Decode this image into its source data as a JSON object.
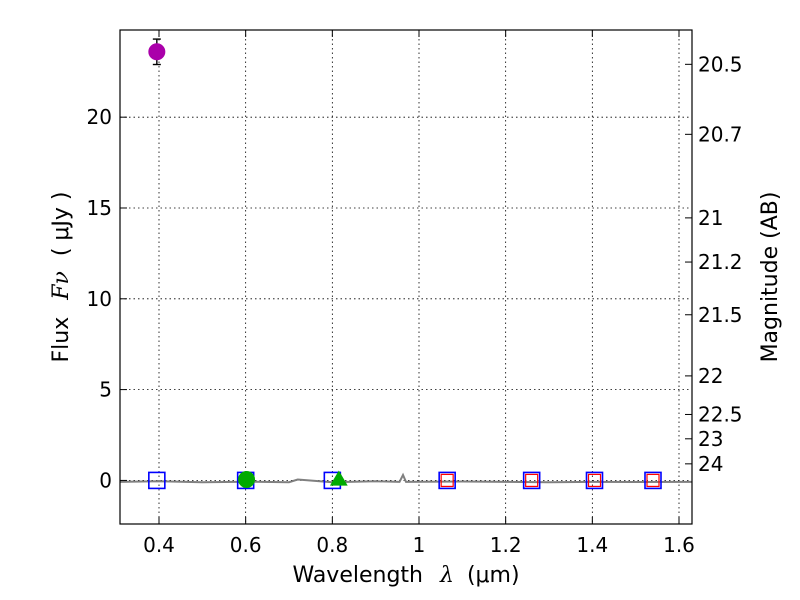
{
  "chart_data": {
    "type": "scatter",
    "title": "",
    "xlabel": "Wavelength",
    "xlabel_symbol": "λ",
    "xlabel_unit": "(μm)",
    "ylabel": "Flux",
    "ylabel_symbol": "Fν",
    "ylabel_unit": "( μJy )",
    "ylabel_right": "Magnitude (AB)",
    "xlim": [
      0.31,
      1.63
    ],
    "ylim": [
      -2.4,
      24.8
    ],
    "grid": true,
    "x_ticks": [
      {
        "value": 0.4,
        "label": "0.4"
      },
      {
        "value": 0.6,
        "label": "0.6"
      },
      {
        "value": 0.8,
        "label": "0.8"
      },
      {
        "value": 1.0,
        "label": "1"
      },
      {
        "value": 1.2,
        "label": "1.2"
      },
      {
        "value": 1.4,
        "label": "1.4"
      },
      {
        "value": 1.6,
        "label": "1.6"
      }
    ],
    "y_ticks": [
      {
        "value": 0,
        "label": "0"
      },
      {
        "value": 5,
        "label": "5"
      },
      {
        "value": 10,
        "label": "10"
      },
      {
        "value": 15,
        "label": "15"
      },
      {
        "value": 20,
        "label": "20"
      }
    ],
    "mag_ticks": [
      {
        "value": 20.5,
        "label": "20.5"
      },
      {
        "value": 20.7,
        "label": "20.7"
      },
      {
        "value": 21,
        "label": "21"
      },
      {
        "value": 21.2,
        "label": "21.2"
      },
      {
        "value": 21.5,
        "label": "21.5"
      },
      {
        "value": 22,
        "label": "22"
      },
      {
        "value": 22.5,
        "label": "22.5"
      },
      {
        "value": 23,
        "label": "23"
      },
      {
        "value": 24,
        "label": "24"
      }
    ],
    "series": [
      {
        "name": "model photometry",
        "marker": "square",
        "color": "#0000ff",
        "points": [
          {
            "x": 0.395,
            "y": 0.0
          },
          {
            "x": 0.6,
            "y": 0.0
          },
          {
            "x": 0.8,
            "y": 0.0
          },
          {
            "x": 1.065,
            "y": 0.0
          },
          {
            "x": 1.26,
            "y": 0.0
          },
          {
            "x": 1.405,
            "y": 0.0
          },
          {
            "x": 1.54,
            "y": 0.0
          }
        ]
      },
      {
        "name": "upper-limit photometry",
        "marker": "square",
        "color": "#ff0000",
        "points": [
          {
            "x": 1.065,
            "y": 0.0
          },
          {
            "x": 1.26,
            "y": 0.0
          },
          {
            "x": 1.405,
            "y": 0.0
          },
          {
            "x": 1.54,
            "y": 0.0
          }
        ]
      },
      {
        "name": "green circle detection",
        "marker": "circle",
        "color": "#00aa00",
        "points": [
          {
            "x": 0.602,
            "y": 0.05,
            "err": 0.3
          }
        ]
      },
      {
        "name": "green triangle detection",
        "marker": "triangle",
        "color": "#00aa00",
        "points": [
          {
            "x": 0.815,
            "y": 0.05
          }
        ]
      },
      {
        "name": "magenta circle detection",
        "marker": "circle",
        "color": "#aa00aa",
        "points": [
          {
            "x": 0.395,
            "y": 23.6,
            "err": 0.7
          }
        ]
      }
    ],
    "spectrum": {
      "name": "model spectrum",
      "color": "#808080",
      "points": [
        {
          "x": 0.31,
          "y": -0.08
        },
        {
          "x": 0.4,
          "y": -0.05
        },
        {
          "x": 0.5,
          "y": -0.1
        },
        {
          "x": 0.6,
          "y": -0.07
        },
        {
          "x": 0.7,
          "y": -0.1
        },
        {
          "x": 0.72,
          "y": 0.05
        },
        {
          "x": 0.8,
          "y": -0.1
        },
        {
          "x": 0.9,
          "y": -0.05
        },
        {
          "x": 0.955,
          "y": -0.08
        },
        {
          "x": 0.963,
          "y": 0.3
        },
        {
          "x": 0.97,
          "y": -0.08
        },
        {
          "x": 1.1,
          "y": -0.06
        },
        {
          "x": 1.2,
          "y": -0.08
        },
        {
          "x": 1.3,
          "y": -0.1
        },
        {
          "x": 1.4,
          "y": -0.08
        },
        {
          "x": 1.5,
          "y": -0.09
        },
        {
          "x": 1.63,
          "y": -0.08
        }
      ]
    }
  }
}
